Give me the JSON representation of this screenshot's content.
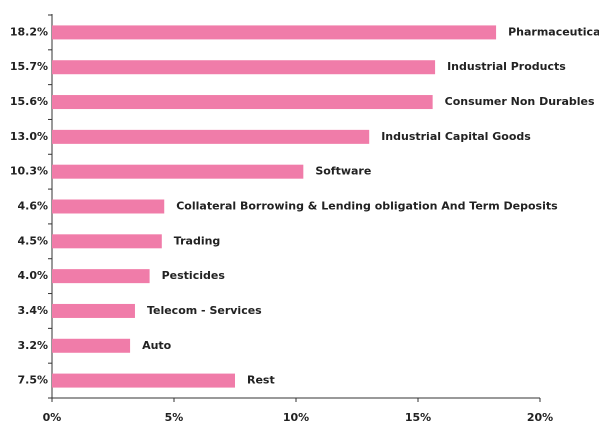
{
  "chart_data": {
    "type": "bar",
    "orientation": "horizontal",
    "categories": [
      "Pharmaceuticals",
      "Industrial Products",
      "Consumer Non Durables",
      "Industrial Capital Goods",
      "Software",
      "Collateral Borrowing & Lending obligation And Term Deposits",
      "Trading",
      "Pesticides",
      "Telecom - Services",
      "Auto",
      "Rest"
    ],
    "values": [
      18.2,
      15.7,
      15.6,
      13.0,
      10.3,
      4.6,
      4.5,
      4.0,
      3.4,
      3.2,
      7.5
    ],
    "value_labels": [
      "18.2%",
      "15.7%",
      "15.6%",
      "13.0%",
      "10.3%",
      "4.6%",
      "4.5%",
      "4.0%",
      "3.4%",
      "3.2%",
      "7.5%"
    ],
    "color": "#f07ca9",
    "xlim": [
      0,
      20
    ],
    "xticks": [
      {
        "value": 0,
        "label": "0%"
      },
      {
        "value": 5,
        "label": "5%"
      },
      {
        "value": 10,
        "label": "10%"
      },
      {
        "value": 15,
        "label": "15%"
      },
      {
        "value": 20,
        "label": "20%"
      }
    ],
    "grid": false
  }
}
